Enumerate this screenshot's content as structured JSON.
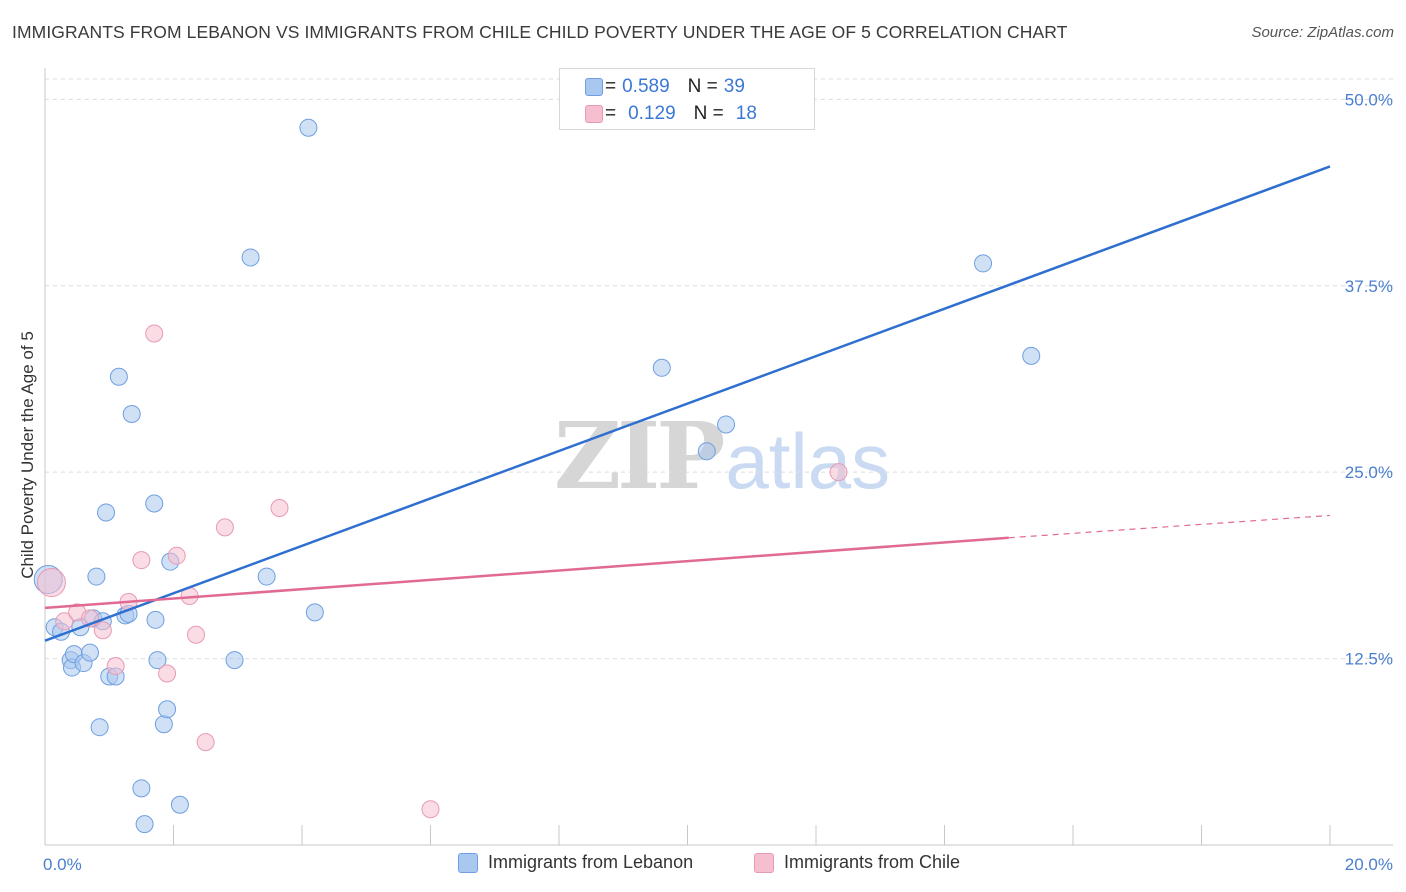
{
  "header": {
    "title": "IMMIGRANTS FROM LEBANON VS IMMIGRANTS FROM CHILE CHILD POVERTY UNDER THE AGE OF 5 CORRELATION CHART",
    "source": "Source: ZipAtlas.com"
  },
  "watermark": {
    "part1": "ZIP",
    "part2": "atlas"
  },
  "legend": {
    "rows": [
      {
        "r_label": "R =",
        "r_value": "0.589",
        "n_label": "N =",
        "n_value": "39",
        "color": "#a9c8ef"
      },
      {
        "r_label": "R =",
        "r_value": "0.129",
        "n_label": "N =",
        "n_value": "18",
        "color": "#f6bfd0"
      }
    ]
  },
  "bottom_legend": {
    "items": [
      {
        "label": "Immigrants from Lebanon",
        "color": "#a9c8ef"
      },
      {
        "label": "Immigrants from Chile",
        "color": "#f6bfd0"
      }
    ]
  },
  "chart_data": {
    "type": "scatter",
    "title": "IMMIGRANTS FROM LEBANON VS IMMIGRANTS FROM CHILE CHILD POVERTY UNDER THE AGE OF 5 CORRELATION CHART",
    "xlabel": "",
    "ylabel": "Child Poverty Under the Age of 5",
    "xlim": [
      0,
      20
    ],
    "ylim": [
      0,
      51.5
    ],
    "x_tick_labels": [
      "0.0%",
      "20.0%"
    ],
    "y_ticks": [
      12.5,
      25.0,
      37.5,
      50.0
    ],
    "y_tick_labels": [
      "12.5%",
      "25.0%",
      "37.5%",
      "50.0%"
    ],
    "grid": true,
    "legend_position": "top-center",
    "series": [
      {
        "name": "Immigrants from Lebanon",
        "color": "#a9c8ef",
        "edge": "#6f9fe0",
        "line_color": "#2f6fd0",
        "trend": {
          "x0": 0,
          "y0": 13.7,
          "x1": 20,
          "y1": 45.5
        },
        "points": [
          [
            0.05,
            17.8
          ],
          [
            0.15,
            14.6
          ],
          [
            0.25,
            14.3
          ],
          [
            0.4,
            12.4
          ],
          [
            0.42,
            11.9
          ],
          [
            0.45,
            12.8
          ],
          [
            0.55,
            14.6
          ],
          [
            0.6,
            12.2
          ],
          [
            0.7,
            12.9
          ],
          [
            0.75,
            15.2
          ],
          [
            0.8,
            18.0
          ],
          [
            0.85,
            7.9
          ],
          [
            0.95,
            22.3
          ],
          [
            1.0,
            11.3
          ],
          [
            1.1,
            11.3
          ],
          [
            1.15,
            31.4
          ],
          [
            1.25,
            15.4
          ],
          [
            1.35,
            28.9
          ],
          [
            1.5,
            3.8
          ],
          [
            1.55,
            1.4
          ],
          [
            1.7,
            22.9
          ],
          [
            1.72,
            15.1
          ],
          [
            1.75,
            12.4
          ],
          [
            1.85,
            8.1
          ],
          [
            1.9,
            9.1
          ],
          [
            1.95,
            19.0
          ],
          [
            2.1,
            2.7
          ],
          [
            2.95,
            12.4
          ],
          [
            3.2,
            39.4
          ],
          [
            3.45,
            18.0
          ],
          [
            4.1,
            48.1
          ],
          [
            4.2,
            15.6
          ],
          [
            9.6,
            32.0
          ],
          [
            10.3,
            26.4
          ],
          [
            10.6,
            28.2
          ],
          [
            14.6,
            39.0
          ],
          [
            15.35,
            32.8
          ],
          [
            1.3,
            15.5
          ],
          [
            0.9,
            15.0
          ]
        ]
      },
      {
        "name": "Immigrants from Chile",
        "color": "#f6bfd0",
        "edge": "#e89ab4",
        "line_color": "#e06a94",
        "trend": {
          "x0": 0,
          "y0": 15.9,
          "x1": 15.0,
          "y1": 20.6,
          "dash_x1": 20,
          "dash_y1": 22.1
        },
        "points": [
          [
            0.1,
            17.6
          ],
          [
            0.3,
            15.0
          ],
          [
            0.5,
            15.6
          ],
          [
            0.7,
            15.2
          ],
          [
            0.9,
            14.4
          ],
          [
            1.1,
            12.0
          ],
          [
            1.3,
            16.3
          ],
          [
            1.5,
            19.1
          ],
          [
            1.7,
            34.3
          ],
          [
            1.9,
            11.5
          ],
          [
            2.05,
            19.4
          ],
          [
            2.25,
            16.7
          ],
          [
            2.35,
            14.1
          ],
          [
            2.5,
            6.9
          ],
          [
            2.8,
            21.3
          ],
          [
            3.65,
            22.6
          ],
          [
            6.0,
            2.4
          ],
          [
            12.35,
            25.0
          ]
        ]
      }
    ]
  }
}
